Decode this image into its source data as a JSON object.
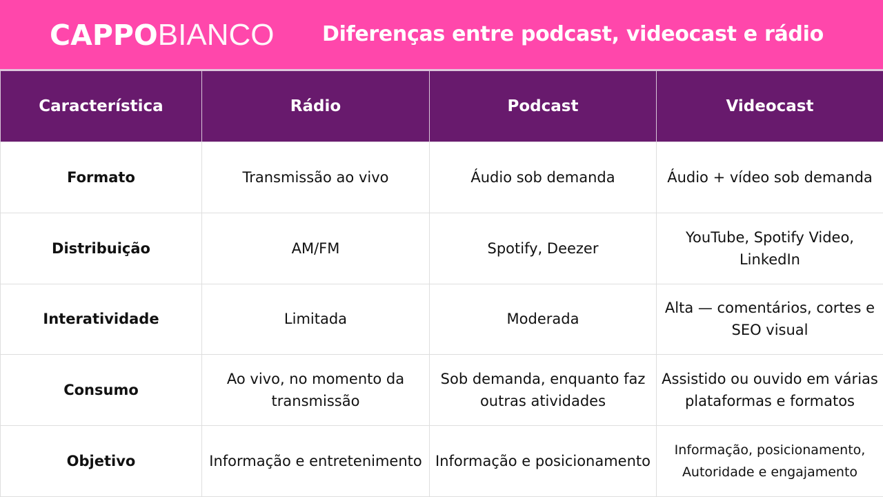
{
  "brand": {
    "logo_bold": "CAPPO",
    "logo_light": "BIANCO"
  },
  "title": "Diferenças entre podcast, videocast e rádio",
  "colors": {
    "banner": "#ff47ab",
    "header": "#681a6d"
  },
  "table": {
    "headers": [
      "Característica",
      "Rádio",
      "Podcast",
      "Videocast"
    ],
    "rows": [
      [
        "Formato",
        "Transmissão ao vivo",
        "Áudio sob demanda",
        "Áudio + vídeo sob demanda"
      ],
      [
        "Distribuição",
        "AM/FM",
        "Spotify, Deezer",
        "YouTube, Spotify Video, LinkedIn"
      ],
      [
        "Interatividade",
        "Limitada",
        "Moderada",
        "Alta — comentários, cortes e SEO visual"
      ],
      [
        "Consumo",
        "Ao vivo, no momento da transmissão",
        "Sob demanda, enquanto faz outras atividades",
        "Assistido ou ouvido em várias plataformas e formatos"
      ],
      [
        "Objetivo",
        "Informação e entretenimento",
        "Informação e posicionamento",
        "Informação, posicionamento, Autoridade e engajamento"
      ]
    ]
  }
}
